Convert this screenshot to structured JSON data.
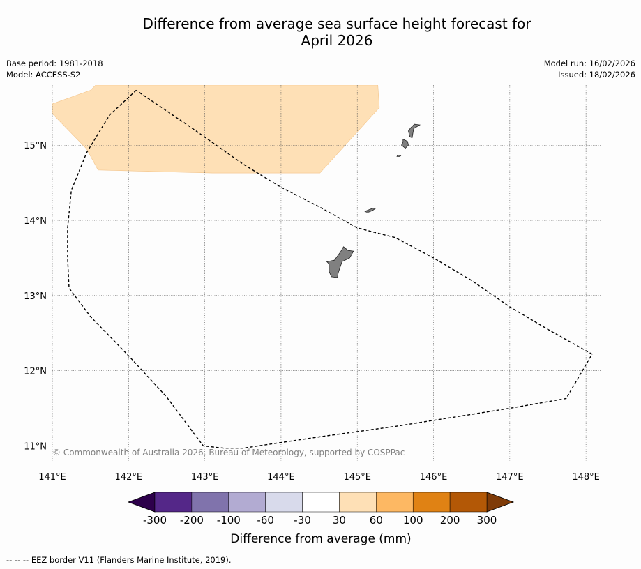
{
  "header": {
    "title_line1": "Difference from average sea surface height forecast for",
    "title_line2": "April 2026",
    "base_period": "Base period: 1981-2018",
    "model": "Model: ACCESS-S2",
    "model_run": "Model run: 16/02/2026",
    "issued": "Issued: 18/02/2026"
  },
  "credit": "© Commonwealth of Australia 2026, Bureau of Meteorology, supported by COSPPac",
  "footer": "--  --  -- EEZ border V11 (Flanders Marine Institute, 2019).",
  "colors": {
    "positive_30_60": "#fee0b6",
    "land": "#808080",
    "gridline": "#555555",
    "eez": "#000000"
  },
  "chart_data": {
    "type": "map",
    "x_unit": "degrees longitude E",
    "y_unit": "degrees latitude N",
    "xlim": [
      141.0,
      148.2
    ],
    "ylim": [
      10.8,
      15.8
    ],
    "x_ticks": [
      {
        "value": 141,
        "label": "141°E"
      },
      {
        "value": 142,
        "label": "142°E"
      },
      {
        "value": 143,
        "label": "143°E"
      },
      {
        "value": 144,
        "label": "144°E"
      },
      {
        "value": 145,
        "label": "145°E"
      },
      {
        "value": 146,
        "label": "146°E"
      },
      {
        "value": 147,
        "label": "147°E"
      },
      {
        "value": 148,
        "label": "148°E"
      }
    ],
    "y_ticks": [
      {
        "value": 11,
        "label": "11°N"
      },
      {
        "value": 12,
        "label": "12°N"
      },
      {
        "value": 13,
        "label": "13°N"
      },
      {
        "value": 14,
        "label": "14°N"
      },
      {
        "value": 15,
        "label": "15°N"
      }
    ],
    "anomaly_region": {
      "category": "30 to 60 mm",
      "color": "#fee0b6",
      "polygon": [
        [
          141.0,
          15.55
        ],
        [
          141.5,
          15.73
        ],
        [
          141.57,
          15.8
        ],
        [
          145.27,
          15.8
        ],
        [
          145.29,
          15.5
        ],
        [
          144.51,
          14.63
        ],
        [
          143.1,
          14.63
        ],
        [
          141.6,
          14.67
        ],
        [
          141.45,
          14.95
        ],
        [
          141.0,
          15.42
        ]
      ]
    },
    "eez_border": [
      [
        142.1,
        15.73
      ],
      [
        141.75,
        15.4
      ],
      [
        141.45,
        14.9
      ],
      [
        141.25,
        14.4
      ],
      [
        141.2,
        13.9
      ],
      [
        141.2,
        13.5
      ],
      [
        141.22,
        13.1
      ],
      [
        141.5,
        12.72
      ],
      [
        142.0,
        12.2
      ],
      [
        142.5,
        11.65
      ],
      [
        142.98,
        11.0
      ],
      [
        143.25,
        10.97
      ],
      [
        143.5,
        10.97
      ],
      [
        144.5,
        11.12
      ],
      [
        145.5,
        11.26
      ],
      [
        146.5,
        11.42
      ],
      [
        147.0,
        11.5
      ],
      [
        147.74,
        11.63
      ],
      [
        148.08,
        12.22
      ],
      [
        147.5,
        12.55
      ],
      [
        147.0,
        12.85
      ],
      [
        146.5,
        13.2
      ],
      [
        146.0,
        13.5
      ],
      [
        145.5,
        13.77
      ],
      [
        145.0,
        13.9
      ],
      [
        144.5,
        14.18
      ],
      [
        144.0,
        14.44
      ],
      [
        143.5,
        14.75
      ],
      [
        142.8,
        15.25
      ],
      [
        142.1,
        15.73
      ]
    ],
    "land": [
      {
        "name": "Guam",
        "polygon": [
          [
            144.82,
            13.65
          ],
          [
            144.88,
            13.6
          ],
          [
            144.95,
            13.59
          ],
          [
            144.9,
            13.5
          ],
          [
            144.8,
            13.45
          ],
          [
            144.78,
            13.39
          ],
          [
            144.75,
            13.3
          ],
          [
            144.74,
            13.24
          ],
          [
            144.66,
            13.25
          ],
          [
            144.63,
            13.32
          ],
          [
            144.63,
            13.42
          ],
          [
            144.6,
            13.45
          ],
          [
            144.7,
            13.47
          ],
          [
            144.78,
            13.58
          ]
        ]
      },
      {
        "name": "Rota",
        "polygon": [
          [
            145.1,
            14.12
          ],
          [
            145.2,
            14.16
          ],
          [
            145.24,
            14.16
          ],
          [
            145.2,
            14.13
          ],
          [
            145.15,
            14.11
          ],
          [
            145.12,
            14.11
          ]
        ]
      },
      {
        "name": "Saipan",
        "polygon": [
          [
            145.75,
            15.28
          ],
          [
            145.82,
            15.27
          ],
          [
            145.74,
            15.22
          ],
          [
            145.72,
            15.1
          ],
          [
            145.69,
            15.11
          ],
          [
            145.67,
            15.19
          ],
          [
            145.7,
            15.23
          ]
        ]
      },
      {
        "name": "Tinian",
        "polygon": [
          [
            145.6,
            15.08
          ],
          [
            145.66,
            15.05
          ],
          [
            145.67,
            15.0
          ],
          [
            145.63,
            14.96
          ],
          [
            145.58,
            15.0
          ],
          [
            145.6,
            15.04
          ]
        ]
      },
      {
        "name": "Aguijan",
        "polygon": [
          [
            145.53,
            14.87
          ],
          [
            145.57,
            14.86
          ],
          [
            145.56,
            14.85
          ],
          [
            145.52,
            14.85
          ]
        ]
      }
    ],
    "colorbar": {
      "label": "Difference from average (mm)",
      "tick_labels": [
        "-300",
        "-200",
        "-100",
        "-60",
        "-30",
        "30",
        "60",
        "100",
        "200",
        "300"
      ],
      "extend_colors": [
        "#2d004b",
        "#7f3b08"
      ],
      "colors": [
        "#542788",
        "#8073ac",
        "#b2abd2",
        "#d8daeb",
        "#ffffff",
        "#fee0b6",
        "#fdb863",
        "#e08214",
        "#b35806"
      ]
    }
  }
}
